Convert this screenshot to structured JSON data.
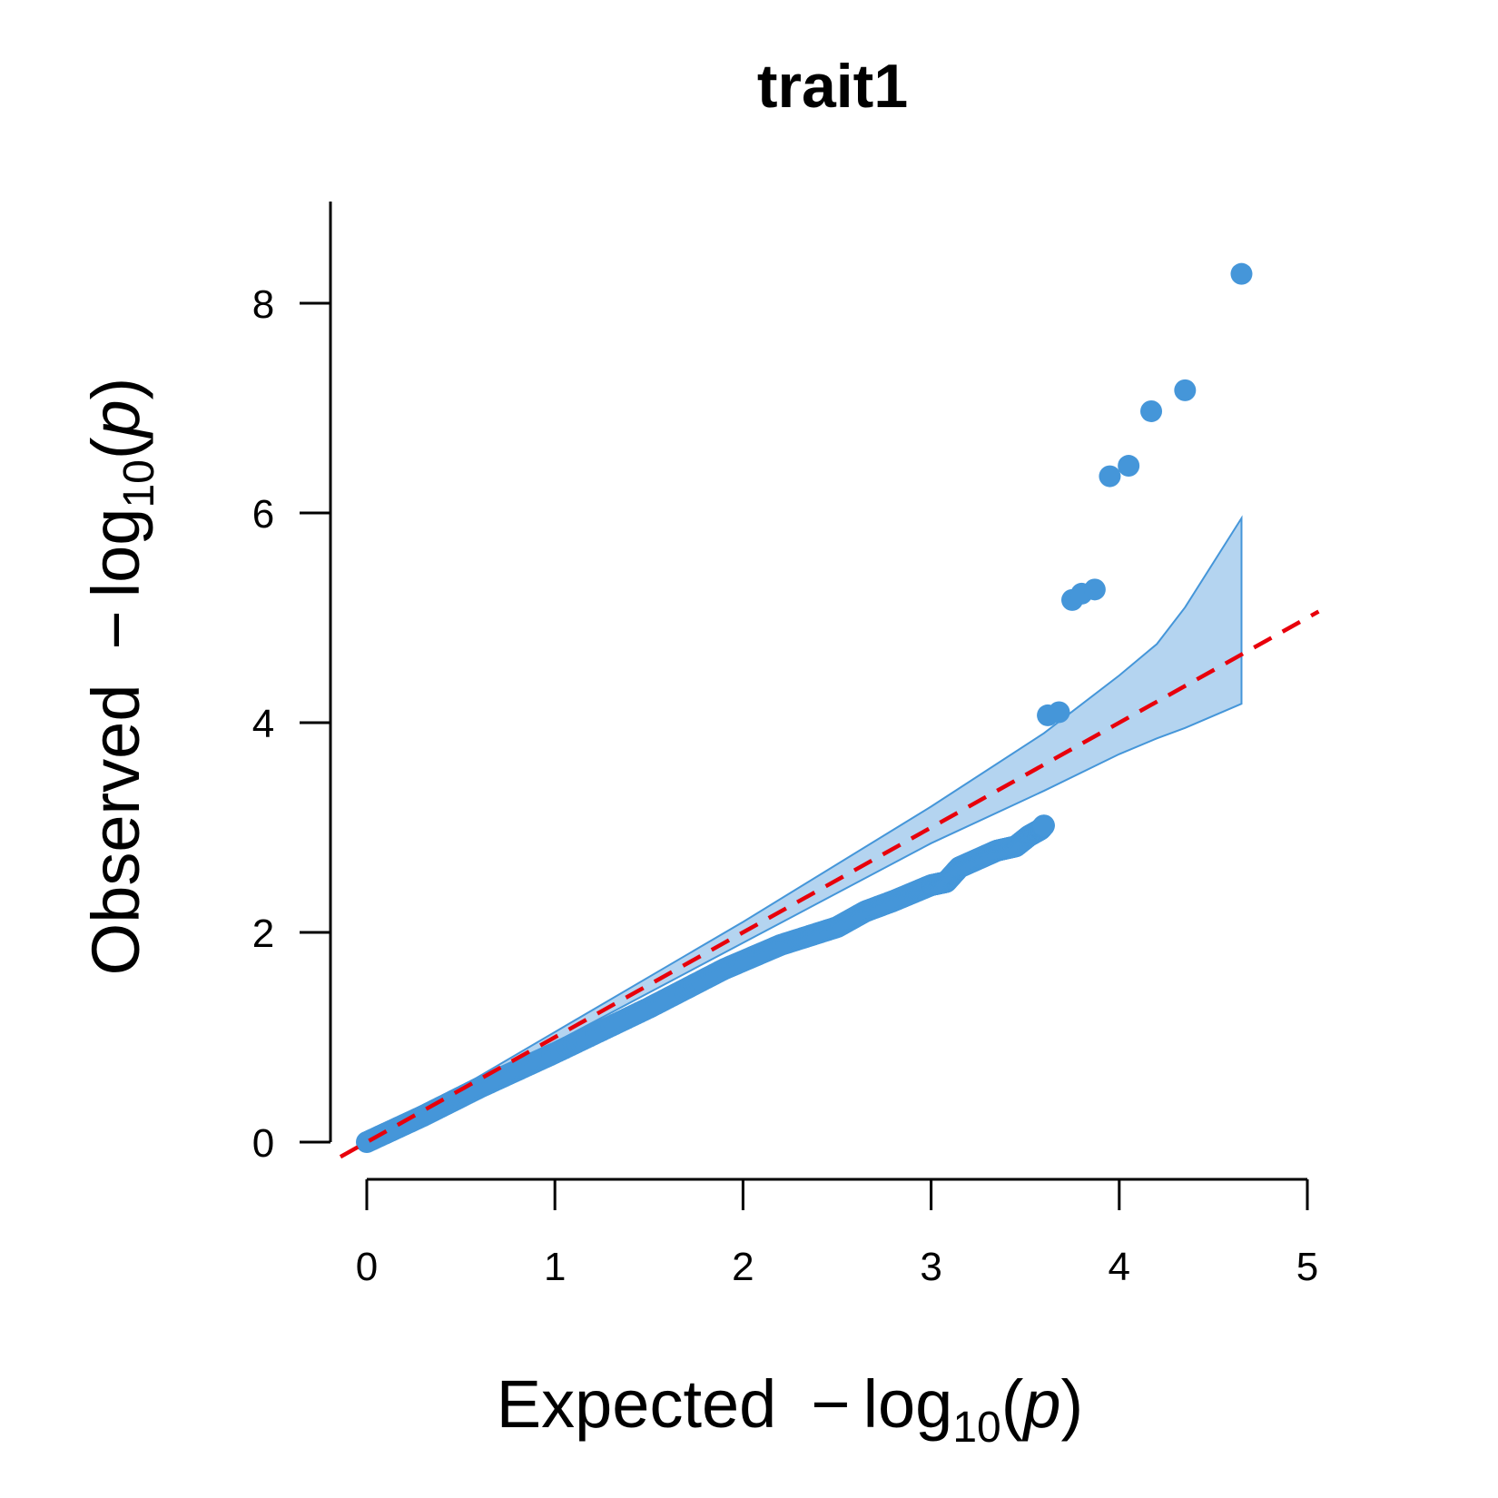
{
  "chart_data": {
    "type": "scatter",
    "title": "trait1",
    "xlabel": {
      "prefix": "Expected",
      "minus": "−",
      "log": "log",
      "subscript": "10",
      "open_paren": "(",
      "var": "p",
      "close_paren": ")"
    },
    "ylabel": {
      "prefix": "Observed",
      "minus": "−",
      "log": "log",
      "subscript": "10",
      "open_paren": "(",
      "var": "p",
      "close_paren": ")"
    },
    "xlim": [
      0,
      5
    ],
    "ylim": [
      0,
      8.9
    ],
    "x_ticks": [
      "0",
      "1",
      "2",
      "3",
      "4",
      "5"
    ],
    "y_ticks": [
      "0",
      "2",
      "4",
      "6",
      "8"
    ],
    "point_color": "#4596d9",
    "band_fill": "#b4d4f0",
    "band_stroke": "#4596d9",
    "reference_line_color": "#e8000b",
    "reference_line": {
      "slope": 1,
      "intercept": 0,
      "style": "dashed"
    },
    "confidence_band": {
      "x": [
        0,
        1,
        2,
        3,
        3.6,
        4.0,
        4.2,
        4.35,
        4.65
      ],
      "upper": [
        0,
        1.05,
        2.1,
        3.2,
        3.9,
        4.45,
        4.75,
        5.1,
        5.95
      ],
      "lower": [
        0,
        0.95,
        1.9,
        2.85,
        3.35,
        3.7,
        3.85,
        3.95,
        4.18
      ]
    },
    "bulk_curve": {
      "x": [
        0,
        0.3,
        0.6,
        1.0,
        1.5,
        1.9,
        2.2,
        2.5,
        2.65,
        2.8,
        3.0,
        3.08,
        3.15,
        3.25,
        3.35,
        3.45,
        3.52,
        3.58,
        3.6
      ],
      "y": [
        0,
        0.25,
        0.52,
        0.85,
        1.28,
        1.65,
        1.88,
        2.05,
        2.2,
        2.3,
        2.45,
        2.48,
        2.62,
        2.7,
        2.78,
        2.82,
        2.92,
        2.98,
        3.02
      ]
    },
    "top_points": [
      {
        "x": 3.62,
        "y": 4.07
      },
      {
        "x": 3.68,
        "y": 4.1
      },
      {
        "x": 3.75,
        "y": 5.17
      },
      {
        "x": 3.8,
        "y": 5.23
      },
      {
        "x": 3.87,
        "y": 5.27
      },
      {
        "x": 3.95,
        "y": 6.35
      },
      {
        "x": 4.05,
        "y": 6.45
      },
      {
        "x": 4.17,
        "y": 6.97
      },
      {
        "x": 4.35,
        "y": 7.17
      },
      {
        "x": 4.65,
        "y": 8.28
      }
    ]
  }
}
